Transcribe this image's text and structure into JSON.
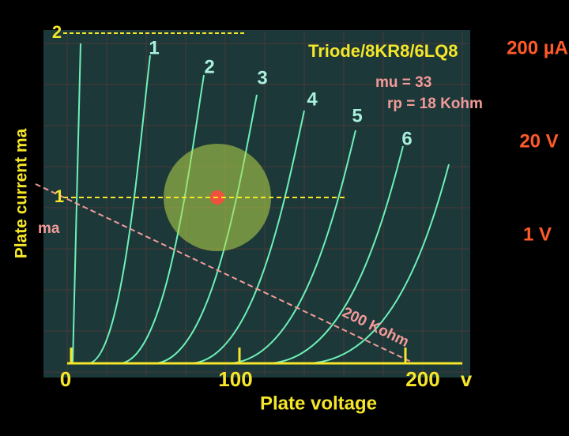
{
  "annotations": {
    "top_mark": "2",
    "mid_mark": "1",
    "curve_labels": [
      "1",
      "2",
      "3",
      "4",
      "5",
      "6"
    ],
    "title": "Triode/8KR8/6LQ8",
    "mu": "mu = 33",
    "rp": "rp = 18 Kohm",
    "y_axis_label": "Plate current  ma",
    "y_unit": "ma",
    "load_line": "200 Kohm",
    "x_ticks": [
      "0",
      "100",
      "200"
    ],
    "x_unit": "v",
    "x_axis_label": "Plate voltage",
    "scales": [
      "200 µA",
      "20 V",
      "1 V"
    ]
  }
}
